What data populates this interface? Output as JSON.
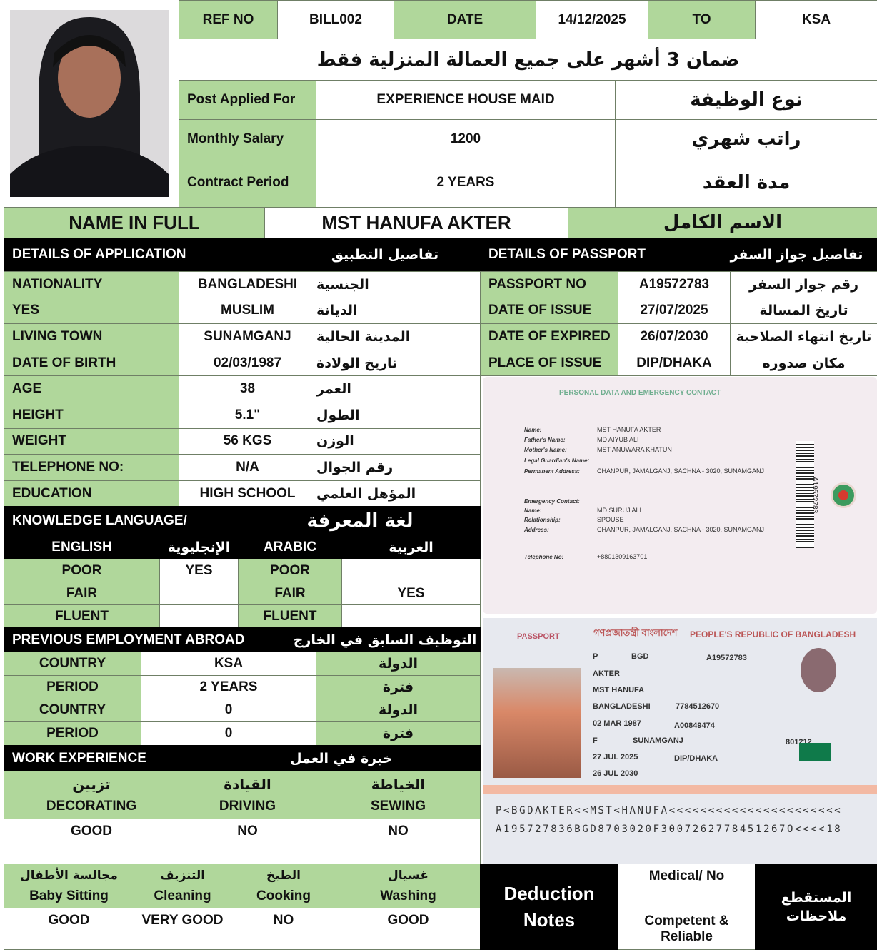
{
  "header": {
    "ref_label": "REF NO",
    "ref_value": "BILL002",
    "date_label": "DATE",
    "date_value": "14/12/2025",
    "to_label": "TO",
    "to_value": "KSA"
  },
  "guarantee": "ضمان 3 أشهر على جميع العمالة المنزلية فقط",
  "job": [
    {
      "label": "Post Applied For",
      "value": "EXPERIENCE HOUSE MAID",
      "ar": "نوع الوظيفة"
    },
    {
      "label": "Monthly Salary",
      "value": "1200",
      "ar": "راتب شهري"
    },
    {
      "label": "Contract Period",
      "value": "2 YEARS",
      "ar": "مدة العقد"
    }
  ],
  "name": {
    "label": "NAME IN FULL",
    "value": "MST HANUFA AKTER",
    "ar": "الاسم الكامل"
  },
  "application": {
    "title": "DETAILS OF APPLICATION",
    "title_ar": "تفاصيل التطبيق",
    "rows": [
      {
        "label": "NATIONALITY",
        "value": "BANGLADESHI",
        "ar": "الجنسية"
      },
      {
        "label": "YES",
        "value": "MUSLIM",
        "ar": "الديانة"
      },
      {
        "label": "LIVING TOWN",
        "value": "SUNAMGANJ",
        "ar": "المدينة الحالية"
      },
      {
        "label": "DATE OF BIRTH",
        "value": "02/03/1987",
        "ar": "تاريخ الولادة"
      },
      {
        "label": "AGE",
        "value": "38",
        "ar": "العمر"
      },
      {
        "label": "HEIGHT",
        "value": "5.1\"",
        "ar": "الطول"
      },
      {
        "label": "WEIGHT",
        "value": "56 KGS",
        "ar": "الوزن"
      },
      {
        "label": "TELEPHONE NO:",
        "value": "N/A",
        "ar": "رقم الجوال"
      },
      {
        "label": "EDUCATION",
        "value": "HIGH SCHOOL",
        "ar": "المؤهل العلمي"
      }
    ]
  },
  "passport": {
    "title": "DETAILS OF PASSPORT",
    "title_ar": "تفاصيل جواز السفر",
    "rows": [
      {
        "label": "PASSPORT NO",
        "value": "A19572783",
        "ar": "رقم جواز السفر"
      },
      {
        "label": "DATE OF ISSUE",
        "value": "27/07/2025",
        "ar": "تاريخ المسالة"
      },
      {
        "label": "DATE OF EXPIRED",
        "value": "26/07/2030",
        "ar": "تاريخ انتهاء الصلاحية"
      },
      {
        "label": "PLACE OF ISSUE",
        "value": "DIP/DHAKA",
        "ar": "مكان صدوره"
      }
    ]
  },
  "language": {
    "title": "KNOWLEDGE LANGUAGE/",
    "title_ar": "لغة المعرفة",
    "headers": [
      "ENGLISH",
      "الإنجليوية",
      "ARABIC",
      "العربية"
    ],
    "rows": [
      {
        "level": "POOR",
        "english": "YES",
        "level_ar": "POOR",
        "arabic": ""
      },
      {
        "level": "FAIR",
        "english": "",
        "level_ar": "FAIR",
        "arabic": "YES"
      },
      {
        "level": "FLUENT",
        "english": "",
        "level_ar": "FLUENT",
        "arabic": ""
      }
    ]
  },
  "employment": {
    "title": "PREVIOUS EMPLOYMENT ABROAD",
    "title_ar": "التوظيف السابق في الخارج",
    "rows": [
      {
        "label": "COUNTRY",
        "value": "KSA",
        "ar": "الدولة"
      },
      {
        "label": "PERIOD",
        "value": "2 YEARS",
        "ar": "فترة"
      },
      {
        "label": "COUNTRY",
        "value": "0",
        "ar": "الدولة"
      },
      {
        "label": "PERIOD",
        "value": "0",
        "ar": "فترة"
      }
    ]
  },
  "work": {
    "title": "WORK EXPERIENCE",
    "title_ar": "خبرة في العمل",
    "skills": [
      {
        "ar": "تزيين",
        "label": "DECORATING",
        "value": "GOOD"
      },
      {
        "ar": "القيادة",
        "label": "DRIVING",
        "value": "NO"
      },
      {
        "ar": "الخياطة",
        "label": "SEWING",
        "value": "NO"
      }
    ],
    "skills2": [
      {
        "ar": "مجالسة الأطفال",
        "label": "Baby Sitting",
        "value": "GOOD"
      },
      {
        "ar": "التنزيف",
        "label": "Cleaning",
        "value": "VERY GOOD"
      },
      {
        "ar": "الطبخ",
        "label": "Cooking",
        "value": "NO"
      },
      {
        "ar": "غسيال",
        "label": "Washing",
        "value": "GOOD"
      }
    ]
  },
  "deduction": {
    "label_line1": "Deduction",
    "label_line2": "Notes",
    "medical": "Medical/ No",
    "competent_line1": "Competent &",
    "competent_line2": "Reliable",
    "ar_line1": "المستقطع",
    "ar_line2": "ملاحظات"
  },
  "passport_scan": {
    "page1_title": "PERSONAL DATA AND EMERGENCY CONTACT",
    "fields": [
      {
        "label": "Name:",
        "value": "MST HANUFA AKTER"
      },
      {
        "label": "Father's Name:",
        "value": "MD AIYUB ALI"
      },
      {
        "label": "Mother's Name:",
        "value": "MST ANUWARA KHATUN"
      },
      {
        "label": "Legal Guardian's Name:",
        "value": ""
      },
      {
        "label": "Permanent Address:",
        "value": "CHANPUR, JAMALGANJ, SACHNA - 3020, SUNAMGANJ"
      },
      {
        "label": "Emergency Contact:",
        "value": ""
      },
      {
        "label": "Name:",
        "value": "MD SURUJ ALI"
      },
      {
        "label": "Relationship:",
        "value": "SPOUSE"
      },
      {
        "label": "Address:",
        "value": "CHANPUR, JAMALGANJ, SACHNA - 3020, SUNAMGANJ"
      },
      {
        "label": "Telephone No:",
        "value": "+8801309163701"
      }
    ],
    "side_number": "A19572783",
    "header_bn": "গণপ্রজাতন্ত্রী বাংলাদেশ",
    "header_en": "PEOPLE'S REPUBLIC OF BANGLADESH",
    "passport_word": "PASSPORT",
    "type": "P",
    "country_code": "BGD",
    "passport_number": "A19572783",
    "surname": "AKTER",
    "given_name": "MST HANUFA",
    "nationality": "BANGLADESHI",
    "personal_no": "7784512670",
    "dob": "02 MAR 1987",
    "previous_passport": "A00849474",
    "sex": "F",
    "place_of_birth": "SUNAMGANJ",
    "code": "801212",
    "issue_date": "27 JUL 2025",
    "authority": "DIP/DHAKA",
    "expiry_date": "26 JUL 2030",
    "mrz1": "P<BGDAKTER<<MST<HANUFA<<<<<<<<<<<<<<<<<<<<<<",
    "mrz2": "A195727836BGD8703020F3007262778451267O<<<<18"
  },
  "colors": {
    "green": "#b0d79b",
    "black": "#000000"
  }
}
